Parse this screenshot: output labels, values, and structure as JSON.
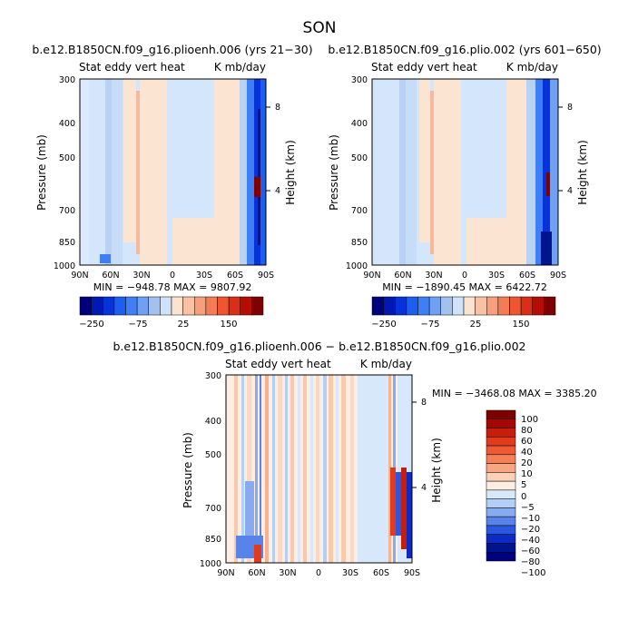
{
  "page_title": "SON",
  "chart_data": [
    {
      "type": "heatmap",
      "title": "b.e12.B1850CN.f09_g16.plioenh.006 (yrs 21−30)",
      "subtitle_left": "Stat eddy vert heat",
      "subtitle_right": "K mb/day",
      "ylabel": "Pressure (mb)",
      "ylabel_right": "Height (km)",
      "x_ticks": [
        "90N",
        "60N",
        "30N",
        "0",
        "30S",
        "60S",
        "90S"
      ],
      "y_ticks": [
        "300",
        "400",
        "500",
        "700",
        "850",
        "1000"
      ],
      "y_right_ticks": [
        "8",
        "4"
      ],
      "min_max": "MIN = −948.78   MAX = 9807.92",
      "colorbar_labels": [
        "−250",
        "−75",
        "25",
        "150"
      ],
      "colorbar_colors": [
        "#00007f",
        "#0019b3",
        "#0533d9",
        "#1c5ef0",
        "#3f7ff5",
        "#6fa0f2",
        "#a2c1ee",
        "#d0e2fa",
        "#fbe3cf",
        "#f8c1a3",
        "#f69f7a",
        "#f47c52",
        "#ef5530",
        "#dc2d16",
        "#b50d04",
        "#7f0000"
      ],
      "zlim": [
        -250,
        250
      ]
    },
    {
      "type": "heatmap",
      "title": "b.e12.B1850CN.f09_g16.plio.002 (yrs 601−650)",
      "subtitle_left": "Stat eddy vert heat",
      "subtitle_right": "K mb/day",
      "ylabel": "Pressure (mb)",
      "ylabel_right": "Height (km)",
      "x_ticks": [
        "90N",
        "60N",
        "30N",
        "0",
        "30S",
        "60S",
        "90S"
      ],
      "y_ticks": [
        "300",
        "400",
        "500",
        "700",
        "850",
        "1000"
      ],
      "y_right_ticks": [
        "8",
        "4"
      ],
      "min_max": "MIN = −1890.45   MAX = 6422.72",
      "colorbar_labels": [
        "−250",
        "−75",
        "25",
        "150"
      ],
      "colorbar_colors": [
        "#00007f",
        "#0019b3",
        "#0533d9",
        "#1c5ef0",
        "#3f7ff5",
        "#6fa0f2",
        "#a2c1ee",
        "#d0e2fa",
        "#fbe3cf",
        "#f8c1a3",
        "#f69f7a",
        "#f47c52",
        "#ef5530",
        "#dc2d16",
        "#b50d04",
        "#7f0000"
      ],
      "zlim": [
        -250,
        250
      ]
    },
    {
      "type": "heatmap",
      "title": "b.e12.B1850CN.f09_g16.plioenh.006 − b.e12.B1850CN.f09_g16.plio.002",
      "subtitle_left": "Stat eddy vert heat",
      "subtitle_right": "K mb/day",
      "ylabel": "Pressure (mb)",
      "ylabel_right": "Height (km)",
      "x_ticks": [
        "90N",
        "60N",
        "30N",
        "0",
        "30S",
        "60S",
        "90S"
      ],
      "y_ticks": [
        "300",
        "400",
        "500",
        "700",
        "850",
        "1000"
      ],
      "y_right_ticks": [
        "8",
        "4"
      ],
      "min_max": "MIN = −3468.08   MAX = 3385.20",
      "colorbar_labels": [
        "100",
        "80",
        "60",
        "40",
        "20",
        "10",
        "5",
        "0",
        "−5",
        "−10",
        "−20",
        "−40",
        "−60",
        "−80",
        "−100"
      ],
      "colorbar_colors": [
        "#7f0000",
        "#a50702",
        "#c81d0b",
        "#e23a1c",
        "#ef5a35",
        "#f58057",
        "#f8a67f",
        "#fcd0b4",
        "#fdeee3",
        "#d8e8fb",
        "#b4cff5",
        "#86acef",
        "#5884ea",
        "#2b56df",
        "#0c2ac4",
        "#00148f",
        "#00007f"
      ],
      "zlim": [
        -100,
        100
      ]
    }
  ]
}
